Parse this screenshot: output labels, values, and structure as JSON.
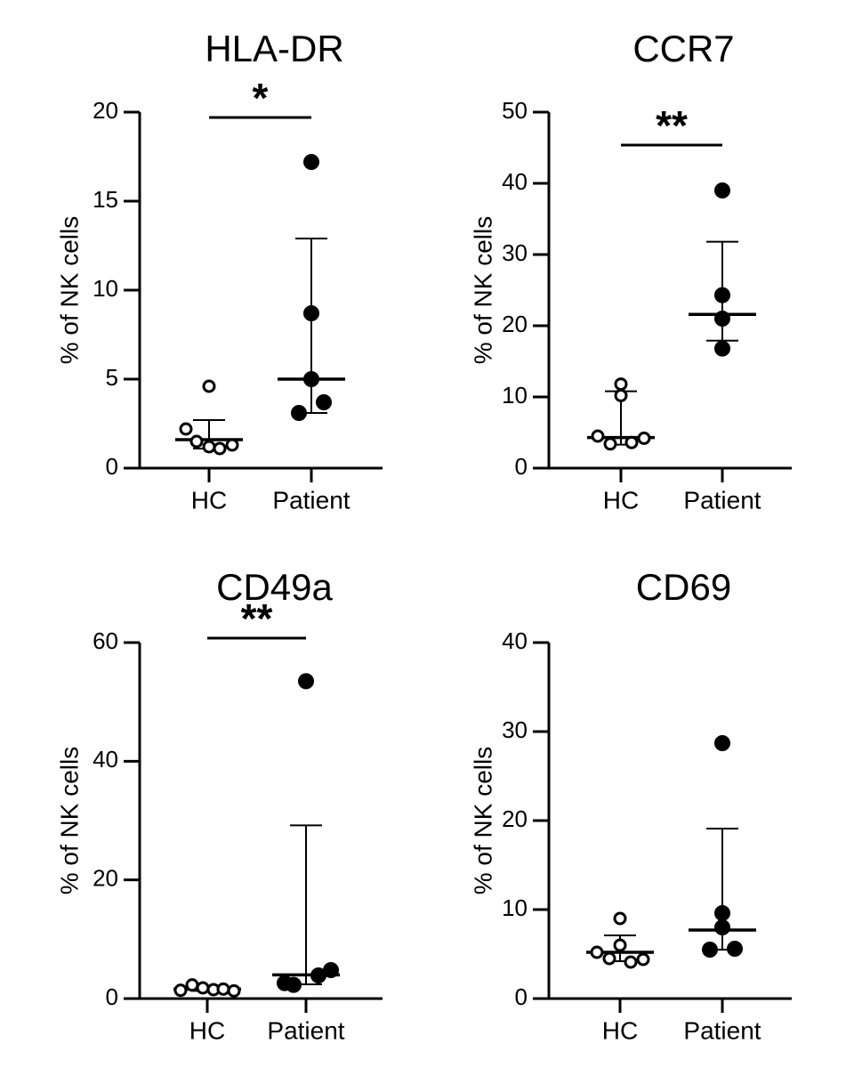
{
  "chart_data": [
    {
      "type": "scatter",
      "title": "HLA-DR",
      "ylabel": "% of NK cells",
      "xlabel": "",
      "categories": [
        "HC",
        "Patient"
      ],
      "ylim": [
        0,
        20
      ],
      "yticks": [
        0,
        5,
        10,
        15,
        20
      ],
      "series": [
        {
          "name": "HC",
          "marker": "open",
          "values": [
            4.6,
            2.2,
            1.5,
            1.2,
            1.1,
            1.3
          ],
          "median": 1.6,
          "error_low": 1.1,
          "error_high": 2.7
        },
        {
          "name": "Patient",
          "marker": "filled",
          "values": [
            17.2,
            8.7,
            3.7,
            3.1,
            5.0
          ],
          "median": 5.0,
          "error_low": 3.1,
          "error_high": 12.9
        }
      ],
      "significance": "*"
    },
    {
      "type": "scatter",
      "title": "CCR7",
      "ylabel": "% of NK cells",
      "xlabel": "",
      "categories": [
        "HC",
        "Patient"
      ],
      "ylim": [
        0,
        50
      ],
      "yticks": [
        0,
        10,
        20,
        30,
        40,
        50
      ],
      "series": [
        {
          "name": "HC",
          "marker": "open",
          "values": [
            11.8,
            10.2,
            4.5,
            3.4,
            3.6,
            4.2
          ],
          "median": 4.3,
          "error_low": 3.3,
          "error_high": 10.8
        },
        {
          "name": "Patient",
          "marker": "filled",
          "values": [
            39.0,
            24.3,
            21.0,
            16.8
          ],
          "median": 21.6,
          "error_low": 17.9,
          "error_high": 31.8
        }
      ],
      "significance": "**"
    },
    {
      "type": "scatter",
      "title": "CD49a",
      "ylabel": "% of NK cells",
      "xlabel": "",
      "categories": [
        "HC",
        "Patient"
      ],
      "ylim": [
        0,
        60
      ],
      "yticks": [
        0,
        20,
        40,
        60
      ],
      "series": [
        {
          "name": "HC",
          "marker": "open",
          "values": [
            1.4,
            2.3,
            1.8,
            1.5,
            1.6,
            1.3
          ],
          "median": 1.6,
          "error_low": 1.3,
          "error_high": 2.2
        },
        {
          "name": "Patient",
          "marker": "filled",
          "values": [
            53.5,
            4.8,
            3.9,
            2.3,
            2.6
          ],
          "median": 4.0,
          "error_low": 2.4,
          "error_high": 29.2
        }
      ],
      "significance": "**"
    },
    {
      "type": "scatter",
      "title": "CD69",
      "ylabel": "% of NK cells",
      "xlabel": "",
      "categories": [
        "HC",
        "Patient"
      ],
      "ylim": [
        0,
        40
      ],
      "yticks": [
        0,
        10,
        20,
        30,
        40
      ],
      "series": [
        {
          "name": "HC",
          "marker": "open",
          "values": [
            9.0,
            6.0,
            5.2,
            4.5,
            4.1,
            4.4
          ],
          "median": 5.2,
          "error_low": 4.2,
          "error_high": 7.1
        },
        {
          "name": "Patient",
          "marker": "filled",
          "values": [
            28.7,
            9.6,
            8.0,
            5.5,
            5.6
          ],
          "median": 7.7,
          "error_low": 5.5,
          "error_high": 19.1
        }
      ],
      "significance": ""
    }
  ]
}
